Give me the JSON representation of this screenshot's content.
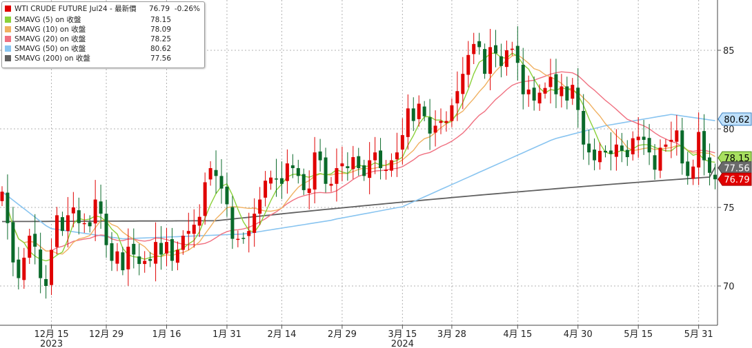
{
  "legend": {
    "title": {
      "name": "WTI CRUDE FUTURE Jul24 - 最新價",
      "value": "76.79",
      "change": "-0.26%",
      "color": "#e00000"
    },
    "items": [
      {
        "name": "SMAVG (5)  on 收盤",
        "value": "78.15",
        "color": "#8bd13a"
      },
      {
        "name": "SMAVG (10)  on 收盤",
        "value": "78.09",
        "color": "#f0b060"
      },
      {
        "name": "SMAVG (20)  on 收盤",
        "value": "78.25",
        "color": "#f07080"
      },
      {
        "name": "SMAVG (50)  on 收盤",
        "value": "80.62",
        "color": "#88c4f0"
      },
      {
        "name": "SMAVG (200)  on 收盤",
        "value": "77.56",
        "color": "#606060"
      }
    ]
  },
  "colors": {
    "up": "#e00000",
    "down": "#0a6a2a",
    "grid": "#b0b0b0"
  },
  "chart_data": {
    "type": "candlestick",
    "ylim": [
      67.5,
      88.2
    ],
    "y_ticks": [
      70,
      75,
      80,
      85
    ],
    "x_ticks": [
      {
        "label": "12月 15",
        "index": 9
      },
      {
        "label": "12月 29",
        "index": 19
      },
      {
        "label": "1月 16",
        "index": 30
      },
      {
        "label": "1月 31",
        "index": 41
      },
      {
        "label": "2月 14",
        "index": 51
      },
      {
        "label": "2月 29",
        "index": 62
      },
      {
        "label": "3月 15",
        "index": 73
      },
      {
        "label": "3月 28",
        "index": 82
      },
      {
        "label": "4月 15",
        "index": 94
      },
      {
        "label": "4月 30",
        "index": 105
      },
      {
        "label": "5月 15",
        "index": 116
      },
      {
        "label": "5月 31",
        "index": 127
      }
    ],
    "year_labels": [
      {
        "label": "2023",
        "index": 9
      },
      {
        "label": "2024",
        "index": 73
      }
    ],
    "close": [
      76.0,
      74.0,
      71.5,
      70.5,
      71.8,
      73.2,
      72.5,
      70.5,
      70.0,
      72.3,
      74.5,
      73.5,
      74.5,
      75.0,
      74.0,
      74.0,
      73.8,
      75.5,
      74.6,
      72.6,
      71.6,
      72.2,
      71.0,
      72.5,
      72.0,
      71.4,
      71.6,
      71.6,
      72.8,
      72.0,
      72.8,
      71.6,
      72.3,
      73.2,
      73.5,
      73.9,
      74.4,
      76.6,
      77.5,
      77.0,
      76.2,
      75.2,
      73.0,
      73.0,
      73.0,
      73.5,
      74.6,
      75.5,
      76.7,
      76.9,
      76.8,
      76.5,
      77.8,
      77.5,
      77.0,
      76.1,
      76.2,
      78.5,
      78.0,
      76.5,
      76.5,
      77.5,
      77.8,
      77.5,
      78.2,
      77.5,
      77.0,
      78.0,
      78.5,
      77.5,
      77.4,
      78.0,
      78.5,
      79.6,
      81.3,
      80.5,
      81.6,
      80.8,
      79.7,
      80.2,
      80.5,
      80.5,
      81.5,
      82.4,
      83.5,
      84.7,
      85.4,
      85.2,
      83.5,
      85.2,
      84.8,
      84.0,
      85.0,
      85.1,
      84.2,
      82.2,
      82.5,
      81.8,
      82.3,
      82.6,
      83.3,
      82.2,
      82.7,
      81.8,
      82.8,
      81.2,
      79.0,
      78.5,
      78.0,
      78.6,
      78.5,
      78.4,
      79.0,
      78.6,
      78.2,
      79.4,
      79.5,
      79.3,
      78.5,
      77.4,
      78.8,
      79.0,
      79.3,
      79.9,
      77.8,
      77.0,
      77.6,
      79.8,
      78.0,
      77.2,
      76.79
    ],
    "series": [
      {
        "name": "WTI CRUDE FUTURE Jul24",
        "type": "candles"
      },
      {
        "name": "SMAVG (5)",
        "value": 78.15
      },
      {
        "name": "SMAVG (10)",
        "value": 78.09
      },
      {
        "name": "SMAVG (20)",
        "value": 78.25
      },
      {
        "name": "SMAVG (50)",
        "value": 80.62
      },
      {
        "name": "SMAVG (200)",
        "value": 77.56
      }
    ],
    "price_tags": [
      "80.62",
      "78.15",
      "77.56",
      "76.79"
    ]
  }
}
